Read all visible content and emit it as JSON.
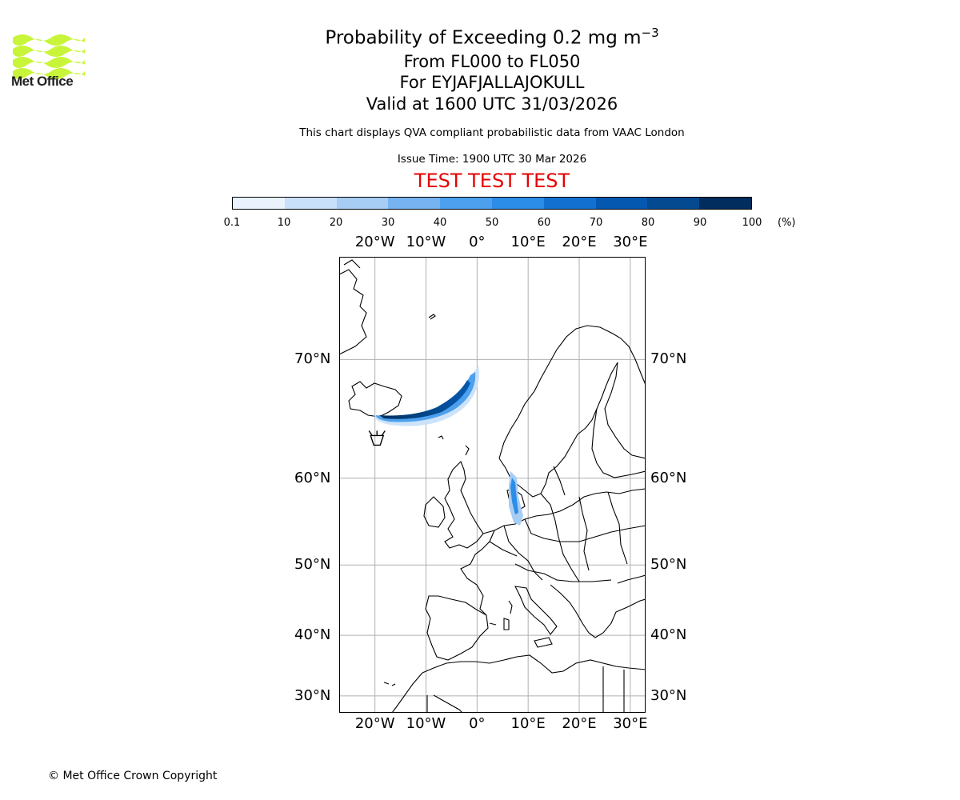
{
  "logo": {
    "text": "Met Office",
    "icon": "met-office-waves-logo",
    "color": "#c8f53a"
  },
  "title": {
    "main": "Probability of Exceeding 0.2 mg m",
    "main_superscript": "−3",
    "levels": "From FL000 to FL050",
    "volcano": "For EYJAFJALLAJOKULL",
    "valid": "Valid at 1600 UTC 31/03/2026"
  },
  "subtitle": "This chart displays QVA compliant probabilistic data from VAAC London",
  "issue_time": "Issue Time: 1900 UTC 30 Mar 2026",
  "test_banner": "TEST TEST TEST",
  "test_color": "#e60000",
  "colorbar": {
    "unit": "(%)",
    "ticks": [
      "0.1",
      "10",
      "20",
      "30",
      "40",
      "50",
      "60",
      "70",
      "80",
      "90",
      "100"
    ],
    "colors": [
      "#eaf3fd",
      "#c8e0f9",
      "#a7cdf5",
      "#77b3f0",
      "#4ca0ee",
      "#2b8de8",
      "#1271d0",
      "#0558b0",
      "#034a90",
      "#012d5e"
    ]
  },
  "map": {
    "lon_labels": [
      "20°W",
      "10°W",
      "0°",
      "10°E",
      "20°E",
      "30°E"
    ],
    "lat_labels": [
      "70°N",
      "60°N",
      "50°N",
      "40°N",
      "30°N"
    ],
    "lon_values": [
      -20,
      -10,
      0,
      10,
      20,
      30
    ],
    "lat_values": [
      70,
      60,
      50,
      40,
      30
    ],
    "extent": {
      "lon_min": -27,
      "lon_max": 33,
      "lat_min": 27,
      "lat_max": 76
    },
    "volcano_marker": {
      "lon": -19.6,
      "lat": 63.6
    }
  },
  "copyright": "© Met Office Crown Copyright"
}
